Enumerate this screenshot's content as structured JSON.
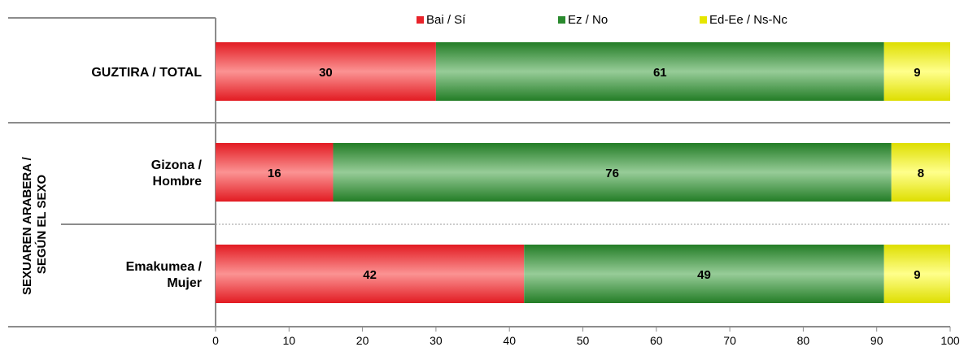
{
  "chart_data": {
    "type": "bar",
    "orientation": "horizontal",
    "stacked": true,
    "xlim": [
      0,
      100
    ],
    "xticks": [
      0,
      10,
      20,
      30,
      40,
      50,
      60,
      70,
      80,
      90,
      100
    ],
    "group_label": "SEXUAREN ARABERA / SEGÚN EL SEXO",
    "categories": [
      "GUZTIRA / TOTAL",
      "Gizona / Hombre",
      "Emakumea / Mujer"
    ],
    "series": [
      {
        "name": "Bai / Sí",
        "color": "#e8232a",
        "values": [
          30,
          16,
          42
        ]
      },
      {
        "name": "Ez / No",
        "color": "#2a8a2e",
        "values": [
          61,
          76,
          49
        ]
      },
      {
        "name": "Ed-Ee / Ns-Nc",
        "color": "#e6e600",
        "values": [
          9,
          8,
          9
        ]
      }
    ],
    "legend_position": "top"
  }
}
